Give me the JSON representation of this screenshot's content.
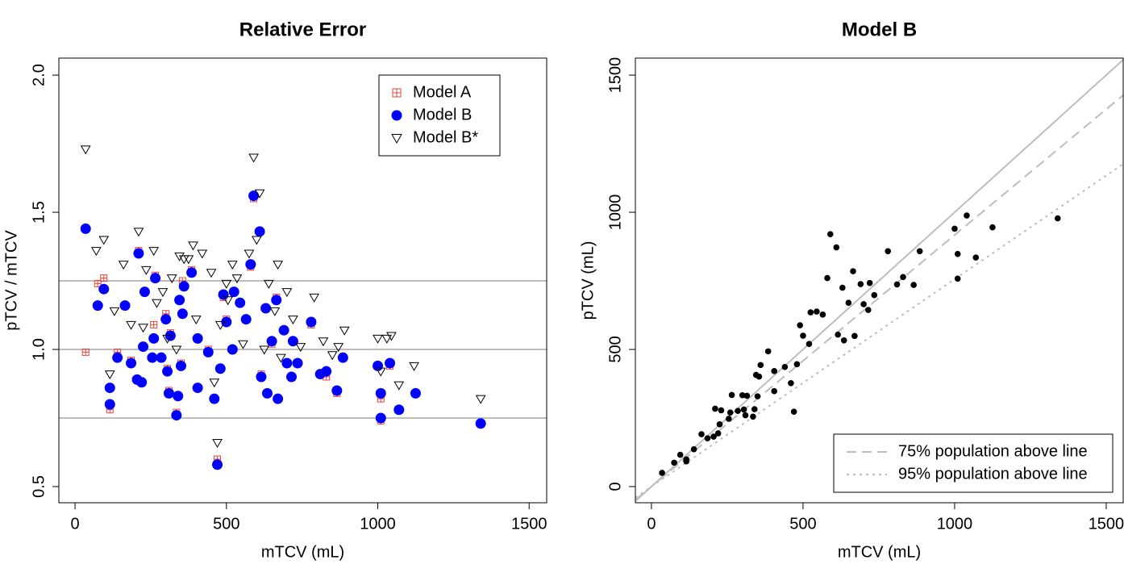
{
  "chart_data": [
    {
      "type": "scatter",
      "title": "Relative Error",
      "x_label": "mTCV (mL)",
      "y_label": "pTCV / mTCV",
      "xlim": [
        -53.5,
        1558
      ],
      "ylim": [
        0.441,
        2.062
      ],
      "xticks": [
        0,
        500,
        1000,
        1500
      ],
      "yticks": [
        0.5,
        {
          "value": 1,
          "label": "1.0"
        },
        1.5,
        {
          "value": 2,
          "label": "2.0"
        }
      ],
      "hlines": [
        0.75,
        1,
        1.25
      ],
      "legend": "top right",
      "series": [
        {
          "name": "Model A",
          "color": "#e8443a",
          "marker": "square-plus",
          "x": [
            35,
            75,
            95,
            95,
            115,
            115,
            140,
            165,
            185,
            205,
            210,
            220,
            225,
            230,
            255,
            260,
            265,
            285,
            300,
            305,
            310,
            315,
            335,
            340,
            345,
            350,
            355,
            360,
            385,
            405,
            405,
            440,
            460,
            470,
            480,
            490,
            500,
            520,
            525,
            545,
            565,
            580,
            590,
            610,
            615,
            630,
            635,
            650,
            665,
            670,
            690,
            700,
            715,
            720,
            735,
            780,
            810,
            830,
            865,
            885,
            1000,
            1010,
            1010,
            1040,
            1070,
            1125,
            1340
          ],
          "values": [
            0.99,
            1.24,
            1.22,
            1.26,
            0.78,
            0.86,
            0.99,
            1.16,
            0.96,
            0.89,
            1.36,
            0.88,
            1.01,
            1.21,
            0.97,
            1.09,
            1.27,
            0.97,
            1.13,
            0.93,
            0.85,
            1.06,
            0.77,
            0.83,
            1.18,
            0.95,
            1.25,
            1.23,
            1.29,
            1.04,
            0.86,
            1.0,
            0.82,
            0.6,
            0.93,
            1.19,
            1.11,
            1.0,
            1.21,
            1.17,
            1.11,
            1.3,
            1.55,
            1.43,
            0.91,
            1.15,
            0.84,
            1.02,
            1.19,
            0.82,
            1.07,
            0.95,
            0.9,
            1.03,
            0.95,
            1.09,
            0.91,
            0.9,
            0.84,
            0.97,
            0.94,
            0.82,
            0.74,
            0.94,
            0.78,
            0.84,
            0.73
          ]
        },
        {
          "name": "Model B",
          "color": "#0000ff",
          "marker": "circle",
          "x": [
            35,
            75,
            95,
            115,
            115,
            140,
            165,
            185,
            205,
            210,
            220,
            225,
            230,
            255,
            260,
            265,
            285,
            300,
            305,
            310,
            315,
            335,
            340,
            345,
            350,
            355,
            360,
            385,
            405,
            405,
            440,
            460,
            470,
            480,
            490,
            500,
            520,
            525,
            545,
            565,
            580,
            590,
            610,
            615,
            630,
            635,
            650,
            665,
            670,
            690,
            700,
            715,
            720,
            735,
            780,
            810,
            830,
            865,
            885,
            1000,
            1010,
            1010,
            1040,
            1070,
            1125,
            1340
          ],
          "values": [
            1.44,
            1.16,
            1.22,
            0.8,
            0.86,
            0.97,
            1.16,
            0.95,
            0.89,
            1.35,
            0.88,
            1.01,
            1.21,
            0.97,
            1.04,
            1.26,
            0.97,
            1.11,
            0.92,
            0.84,
            1.05,
            0.76,
            0.83,
            1.18,
            0.94,
            1.13,
            1.23,
            1.28,
            1.04,
            0.86,
            0.99,
            0.82,
            0.58,
            0.93,
            1.2,
            1.1,
            1.0,
            1.21,
            1.17,
            1.11,
            1.31,
            1.56,
            1.43,
            0.9,
            1.15,
            0.84,
            1.03,
            1.18,
            0.82,
            1.07,
            0.95,
            0.9,
            1.03,
            0.95,
            1.1,
            0.91,
            0.92,
            0.85,
            0.97,
            0.94,
            0.84,
            0.75,
            0.95,
            0.78,
            0.84,
            0.73
          ]
        },
        {
          "name": "Model B*",
          "color": "#000000",
          "marker": "triangle-down",
          "x": [
            35,
            70,
            95,
            115,
            130,
            160,
            185,
            210,
            225,
            235,
            260,
            270,
            290,
            305,
            320,
            335,
            345,
            360,
            375,
            390,
            400,
            420,
            450,
            460,
            470,
            480,
            500,
            505,
            520,
            535,
            555,
            575,
            590,
            600,
            610,
            625,
            640,
            660,
            670,
            680,
            700,
            720,
            745,
            790,
            820,
            850,
            870,
            890,
            1000,
            1010,
            1030,
            1045,
            1070,
            1120,
            1340
          ],
          "values": [
            1.73,
            1.36,
            1.4,
            0.91,
            1.14,
            1.31,
            1.09,
            1.43,
            1.08,
            1.29,
            1.36,
            1.17,
            1.21,
            1.04,
            1.26,
            1.0,
            1.34,
            1.33,
            1.33,
            1.38,
            1.11,
            1.35,
            1.28,
            0.88,
            0.66,
            1.09,
            1.24,
            1.18,
            1.31,
            1.26,
            1.02,
            1.35,
            1.7,
            1.4,
            1.57,
            1.0,
            1.24,
            1.14,
            1.31,
            0.97,
            1.21,
            1.11,
            1.01,
            1.19,
            1.03,
            0.98,
            1.01,
            1.07,
            1.04,
            0.92,
            1.04,
            1.05,
            0.87,
            0.94,
            0.82
          ]
        }
      ]
    },
    {
      "type": "scatter",
      "title": "Model B",
      "x_label": "mTCV (mL)",
      "y_label": "pTCV (mL)",
      "xlim": [
        -53,
        1556
      ],
      "ylim": [
        -59,
        1562
      ],
      "xticks": [
        0,
        500,
        1000,
        1500
      ],
      "yticks": [
        0,
        500,
        1000,
        1500
      ],
      "legend": "bottom right",
      "lines": [
        {
          "slope": 1,
          "style": "solid",
          "color": "#bdbdbd"
        },
        {
          "name": "75% population above line",
          "slope": 0.917,
          "style": "dashed",
          "color": "#bdbdbd"
        },
        {
          "name": "95% population above line",
          "slope": 0.756,
          "style": "dotted",
          "color": "#bdbdbd"
        }
      ],
      "series": [
        {
          "color": "#000000",
          "marker": "dot",
          "x": [
            35,
            75,
            95,
            115,
            115,
            140,
            165,
            185,
            205,
            210,
            220,
            225,
            230,
            255,
            260,
            265,
            285,
            300,
            305,
            310,
            315,
            335,
            340,
            345,
            350,
            355,
            360,
            385,
            405,
            405,
            440,
            460,
            470,
            480,
            490,
            500,
            520,
            525,
            545,
            565,
            580,
            590,
            610,
            615,
            630,
            635,
            650,
            665,
            670,
            690,
            700,
            715,
            720,
            735,
            780,
            810,
            830,
            865,
            885,
            1000,
            1010,
            1010,
            1040,
            1070,
            1125,
            1340
          ],
          "values": [
            50,
            87,
            116,
            92,
            99,
            136,
            191,
            176,
            182,
            284,
            194,
            227,
            278,
            247,
            270,
            334,
            276,
            333,
            281,
            260,
            331,
            255,
            282,
            407,
            329,
            401,
            443,
            493,
            421,
            348,
            436,
            377,
            273,
            446,
            588,
            550,
            520,
            635,
            638,
            627,
            760,
            920,
            872,
            554,
            725,
            533,
            670,
            785,
            549,
            738,
            665,
            644,
            742,
            698,
            858,
            737,
            764,
            735,
            858,
            940,
            848,
            758,
            988,
            835,
            945,
            978
          ]
        }
      ]
    }
  ]
}
